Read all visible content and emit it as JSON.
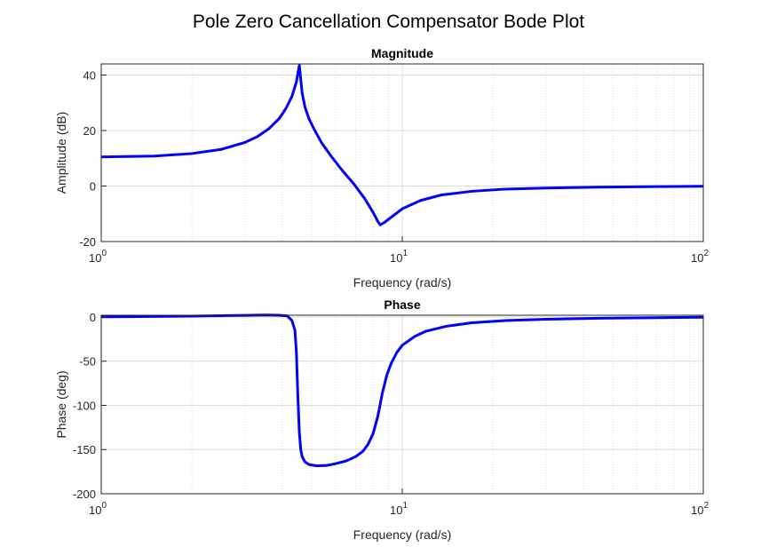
{
  "figure": {
    "title": "Pole Zero Cancellation Compensator Bode Plot"
  },
  "colors": {
    "curve": "#0000ff",
    "grid": "#dcdcdc",
    "axis": "#262626",
    "background": "#ffffff"
  },
  "chart_data": [
    {
      "type": "line",
      "title": "Magnitude",
      "xlabel": "Frequency (rad/s)",
      "ylabel": "Amplitude (dB)",
      "xscale": "log",
      "xlim": [
        1,
        100
      ],
      "ylim": [
        -20,
        44
      ],
      "yticks": [
        -20,
        0,
        20,
        40
      ],
      "xticks": [
        {
          "base": "10",
          "exp": "0",
          "value": 1
        },
        {
          "base": "10",
          "exp": "1",
          "value": 10
        },
        {
          "base": "10",
          "exp": "2",
          "value": 100
        }
      ],
      "grid": true,
      "series": [
        {
          "x": [
            1,
            1.5,
            2,
            2.5,
            3,
            3.3,
            3.6,
            3.9,
            4.1,
            4.3,
            4.45,
            4.55,
            4.6,
            4.65,
            4.75,
            4.9,
            5.1,
            5.4,
            5.8,
            6.3,
            6.9,
            7.5,
            8.0,
            8.3,
            8.45,
            8.7,
            9.2,
            10,
            11.5,
            13.5,
            17,
            22,
            30,
            45,
            70,
            100
          ],
          "y": [
            10.5,
            10.8,
            11.7,
            13.2,
            15.7,
            17.8,
            20.6,
            24.3,
            27.8,
            32.3,
            37.5,
            43.5,
            38.5,
            33.5,
            28.5,
            24.2,
            20.4,
            15.5,
            10.8,
            5.8,
            0.8,
            -4.5,
            -9.5,
            -12.8,
            -14.0,
            -13.2,
            -11.2,
            -8.2,
            -5.2,
            -3.2,
            -1.9,
            -1.1,
            -0.7,
            -0.4,
            -0.2,
            -0.1
          ]
        }
      ]
    },
    {
      "type": "line",
      "title": "Phase",
      "xlabel": "Frequency (rad/s)",
      "ylabel": "Phase (deg)",
      "xscale": "log",
      "xlim": [
        1,
        100
      ],
      "ylim": [
        -200,
        2
      ],
      "yticks": [
        -200,
        -150,
        -100,
        -50,
        0
      ],
      "xticks": [
        {
          "base": "10",
          "exp": "0",
          "value": 1
        },
        {
          "base": "10",
          "exp": "1",
          "value": 10
        },
        {
          "base": "10",
          "exp": "2",
          "value": 100
        }
      ],
      "grid": true,
      "series": [
        {
          "x": [
            1,
            1.5,
            2,
            2.5,
            3,
            3.5,
            3.9,
            4.15,
            4.3,
            4.4,
            4.45,
            4.5,
            4.55,
            4.6,
            4.65,
            4.75,
            4.9,
            5.2,
            5.6,
            6.0,
            6.5,
            7.0,
            7.4,
            7.7,
            8.0,
            8.3,
            8.6,
            8.9,
            9.2,
            9.6,
            10,
            11,
            12,
            14,
            17,
            22,
            30,
            45,
            70,
            100
          ],
          "y": [
            0.2,
            0.6,
            1.0,
            1.5,
            1.9,
            2.2,
            2.0,
            1.2,
            -4,
            -15,
            -40,
            -90,
            -130,
            -150,
            -158,
            -164,
            -167,
            -168.5,
            -168,
            -166,
            -163,
            -158,
            -152,
            -144,
            -132,
            -112,
            -85,
            -65,
            -52,
            -40,
            -32,
            -22,
            -16,
            -10.5,
            -6.5,
            -4,
            -2.5,
            -1.4,
            -0.7,
            -0.3
          ]
        }
      ]
    }
  ]
}
